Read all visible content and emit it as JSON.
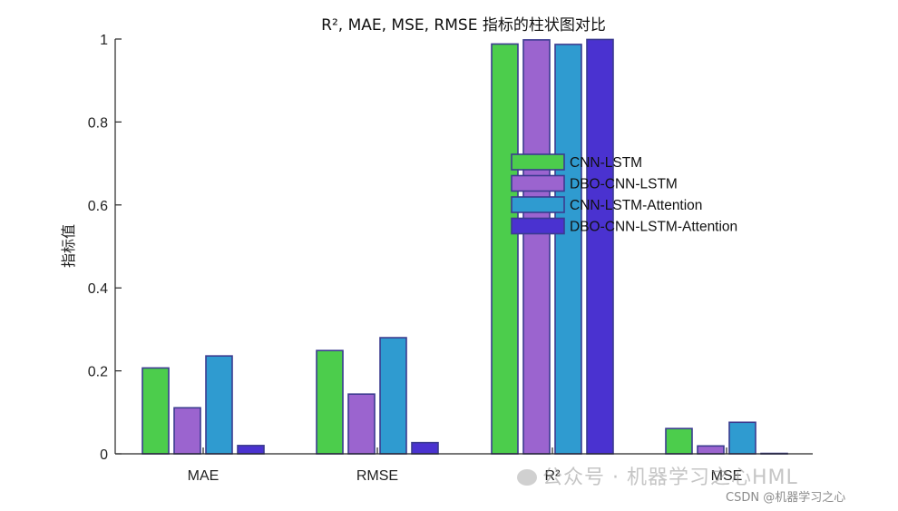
{
  "chart_data": {
    "type": "bar",
    "title": "R², MAE, MSE, RMSE 指标的柱状图对比",
    "xlabel": "",
    "ylabel": "指标值",
    "categories": [
      "MAE",
      "RMSE",
      "R²",
      "MSE"
    ],
    "ylim": [
      0,
      1
    ],
    "yticks": [
      "0",
      "0.2",
      "0.4",
      "0.6",
      "0.8",
      "1"
    ],
    "grid": false,
    "legend_position": "center",
    "series": [
      {
        "name": "CNN-LSTM",
        "color": "#4ccd4c",
        "values": [
          0.207,
          0.249,
          0.988,
          0.061
        ]
      },
      {
        "name": "DBO-CNN-LSTM",
        "color": "#9b64cf",
        "values": [
          0.111,
          0.144,
          0.998,
          0.019
        ]
      },
      {
        "name": "CNN-LSTM-Attention",
        "color": "#2f9bd0",
        "values": [
          0.236,
          0.28,
          0.987,
          0.076
        ]
      },
      {
        "name": "DBO-CNN-LSTM-Attention",
        "color": "#4a32d0",
        "values": [
          0.02,
          0.027,
          0.999,
          0.001
        ]
      }
    ]
  },
  "watermark": {
    "main": "公众号 · 机器学习之心HML",
    "sub": "CSDN @机器学习之心"
  }
}
